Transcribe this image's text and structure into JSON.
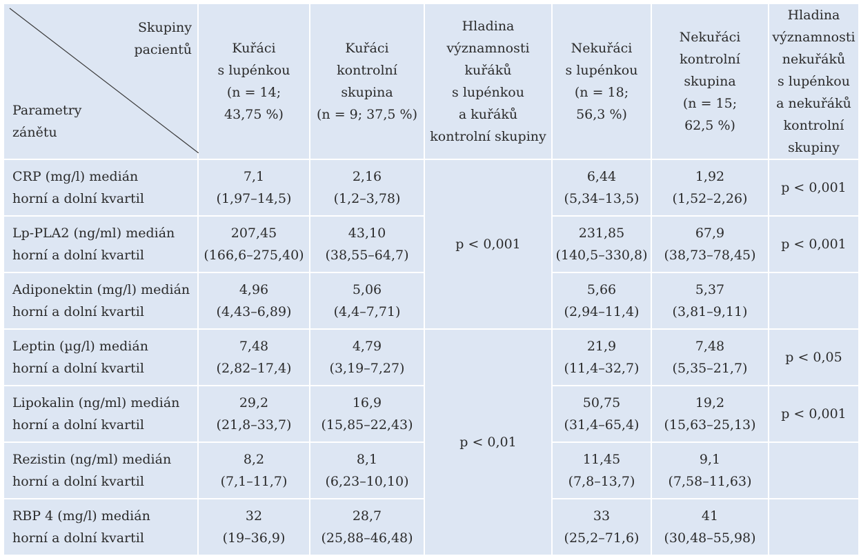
{
  "corner": {
    "top": [
      "Skupiny",
      "pacientů"
    ],
    "bottom": [
      "Parametry",
      "zánětu"
    ]
  },
  "headers": [
    [
      "Kuřáci",
      "s lupénkou",
      "(n = 14;",
      "43,75 %)"
    ],
    [
      "Kuřáci",
      "kontrolní",
      "skupina",
      "(n = 9; 37,5 %)"
    ],
    [
      "Hladina",
      "významnosti",
      "kuřáků",
      "s lupénkou",
      "a kuřáků",
      "kontrolní skupiny"
    ],
    [
      "Nekuřáci",
      "s lupénkou",
      "(n = 18;",
      "56,3 %)"
    ],
    [
      "Nekuřáci",
      "kontrolní",
      "skupina",
      "(n = 15;",
      "62,5 %)"
    ],
    [
      "Hladina",
      "významnosti",
      "nekuřáků",
      "s lupénkou",
      "a nekuřáků",
      "kontrolní",
      "skupiny"
    ]
  ],
  "rows": [
    {
      "param": [
        "CRP (mg/l) medián",
        "horní a dolní kvartil"
      ],
      "cells": [
        [
          "7,1",
          "(1,97–14,5)"
        ],
        [
          "2,16",
          "(1,2–3,78)"
        ],
        [
          "6,44",
          "(5,34–13,5)"
        ],
        [
          "1,92",
          "(1,52–2,26)"
        ]
      ],
      "sig_nonsmokers": "p < 0,001"
    },
    {
      "param": [
        "Lp-PLA2 (ng/ml) medián",
        "horní a dolní kvartil"
      ],
      "cells": [
        [
          "207,45",
          "(166,6–275,40)"
        ],
        [
          "43,10",
          "(38,55–64,7)"
        ],
        [
          "231,85",
          "(140,5–330,8)"
        ],
        [
          "67,9",
          "(38,73–78,45)"
        ]
      ],
      "sig_smokers": "p < 0,001",
      "sig_nonsmokers": "p < 0,001"
    },
    {
      "param": [
        "Adiponektin (mg/l) medián",
        "horní a dolní kvartil"
      ],
      "cells": [
        [
          "4,96",
          "(4,43–6,89)"
        ],
        [
          "5,06",
          "(4,4–7,71)"
        ],
        [
          "5,66",
          "(2,94–11,4)"
        ],
        [
          "5,37",
          "(3,81–9,11)"
        ]
      ],
      "sig_smokers": "",
      "sig_nonsmokers": ""
    },
    {
      "param": [
        "Leptin (µg/l) medián",
        "horní a dolní kvartil"
      ],
      "cells": [
        [
          "7,48",
          "(2,82–17,4)"
        ],
        [
          "4,79",
          "(3,19–7,27)"
        ],
        [
          "21,9",
          "(11,4–32,7)"
        ],
        [
          "7,48",
          "(5,35–21,7)"
        ]
      ],
      "sig_smokers": "",
      "sig_nonsmokers": "p < 0,05"
    },
    {
      "param": [
        "Lipokalin (ng/ml) medián",
        "horní a dolní kvartil"
      ],
      "cells": [
        [
          "29,2",
          "(21,8–33,7)"
        ],
        [
          "16,9",
          "(15,85–22,43)"
        ],
        [
          "50,75",
          "(31,4–65,4)"
        ],
        [
          "19,2",
          "(15,63–25,13)"
        ]
      ],
      "sig_smokers": "p < 0,01",
      "sig_nonsmokers": "p < 0,001"
    },
    {
      "param": [
        "Rezistin (ng/ml) medián",
        "horní a dolní kvartil"
      ],
      "cells": [
        [
          "8,2",
          "(7,1–11,7)"
        ],
        [
          "8,1",
          "(6,23–10,10)"
        ],
        [
          "11,45",
          "(7,8–13,7)"
        ],
        [
          "9,1",
          "(7,58–11,63)"
        ]
      ],
      "sig_smokers": "",
      "sig_nonsmokers": ""
    },
    {
      "param": [
        "RBP 4 (mg/l) medián",
        "horní a dolní kvartil"
      ],
      "cells": [
        [
          "32",
          "(19–36,9)"
        ],
        [
          "28,7",
          "(25,88–46,48)"
        ],
        [
          "33",
          "(25,2–71,6)"
        ],
        [
          "41",
          "(30,48–55,98)"
        ]
      ],
      "sig_smokers": "",
      "sig_nonsmokers": ""
    }
  ],
  "colors": {
    "cell_background": "#dde6f3",
    "grid_lines": "#ffffff",
    "text": "#2a2a2a"
  }
}
